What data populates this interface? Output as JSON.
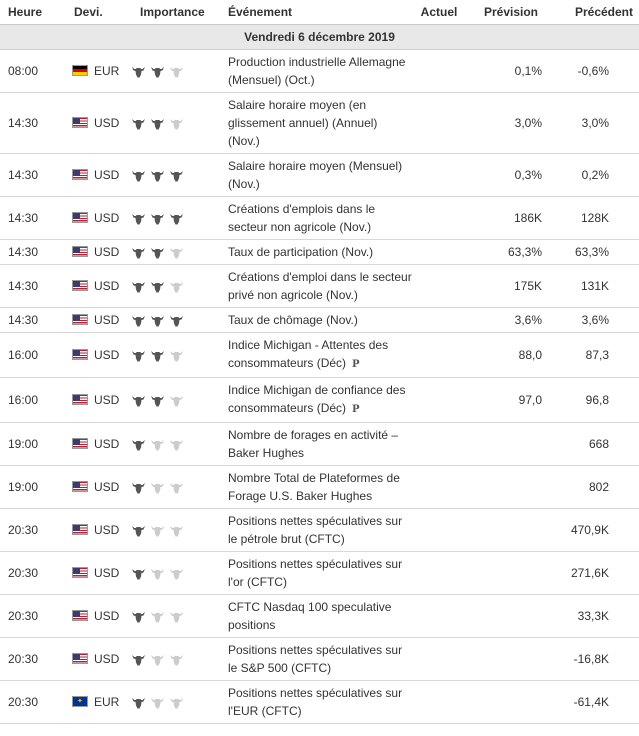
{
  "headers": {
    "time": "Heure",
    "currency": "Devi.",
    "importance": "Importance",
    "event": "Événement",
    "actual": "Actuel",
    "forecast": "Prévision",
    "previous": "Précédent"
  },
  "day_label": "Vendredi 6 décembre 2019",
  "colors": {
    "bull_active": "#555555",
    "bull_inactive": "#cccccc",
    "day_bg": "#e8e8e8"
  },
  "events": [
    {
      "time": "08:00",
      "flag": "de",
      "currency": "EUR",
      "importance": 2,
      "event": "Production industrielle Allemagne (Mensuel) (Oct.)",
      "prelim": false,
      "actual": "",
      "forecast": "0,1%",
      "previous": "-0,6%"
    },
    {
      "time": "14:30",
      "flag": "us",
      "currency": "USD",
      "importance": 2,
      "event": "Salaire horaire moyen (en glissement annuel) (Annuel) (Nov.)",
      "prelim": false,
      "actual": "",
      "forecast": "3,0%",
      "previous": "3,0%"
    },
    {
      "time": "14:30",
      "flag": "us",
      "currency": "USD",
      "importance": 3,
      "event": "Salaire horaire moyen (Mensuel) (Nov.)",
      "prelim": false,
      "actual": "",
      "forecast": "0,3%",
      "previous": "0,2%"
    },
    {
      "time": "14:30",
      "flag": "us",
      "currency": "USD",
      "importance": 3,
      "event": "Créations d'emplois dans le secteur non agricole (Nov.)",
      "prelim": false,
      "actual": "",
      "forecast": "186K",
      "previous": "128K"
    },
    {
      "time": "14:30",
      "flag": "us",
      "currency": "USD",
      "importance": 2,
      "event": "Taux de participation (Nov.)",
      "prelim": false,
      "actual": "",
      "forecast": "63,3%",
      "previous": "63,3%"
    },
    {
      "time": "14:30",
      "flag": "us",
      "currency": "USD",
      "importance": 2,
      "event": "Créations d'emploi dans le secteur privé non agricole (Nov.)",
      "prelim": false,
      "actual": "",
      "forecast": "175K",
      "previous": "131K"
    },
    {
      "time": "14:30",
      "flag": "us",
      "currency": "USD",
      "importance": 3,
      "event": "Taux de chômage (Nov.)",
      "prelim": false,
      "actual": "",
      "forecast": "3,6%",
      "previous": "3,6%"
    },
    {
      "time": "16:00",
      "flag": "us",
      "currency": "USD",
      "importance": 2,
      "event": "Indice Michigan - Attentes des consommateurs (Déc)",
      "prelim": true,
      "prelim_label": "P",
      "actual": "",
      "forecast": "88,0",
      "previous": "87,3"
    },
    {
      "time": "16:00",
      "flag": "us",
      "currency": "USD",
      "importance": 2,
      "event": "Indice Michigan de confiance des consommateurs (Déc)",
      "prelim": true,
      "prelim_label": "P",
      "actual": "",
      "forecast": "97,0",
      "previous": "96,8"
    },
    {
      "time": "19:00",
      "flag": "us",
      "currency": "USD",
      "importance": 1,
      "event": "Nombre de forages en activité – Baker Hughes",
      "prelim": false,
      "actual": "",
      "forecast": "",
      "previous": "668"
    },
    {
      "time": "19:00",
      "flag": "us",
      "currency": "USD",
      "importance": 1,
      "event": "Nombre Total de Plateformes de Forage U.S. Baker Hughes",
      "prelim": false,
      "actual": "",
      "forecast": "",
      "previous": "802"
    },
    {
      "time": "20:30",
      "flag": "us",
      "currency": "USD",
      "importance": 1,
      "event": "Positions nettes spéculatives sur le pétrole brut (CFTC)",
      "prelim": false,
      "actual": "",
      "forecast": "",
      "previous": "470,9K"
    },
    {
      "time": "20:30",
      "flag": "us",
      "currency": "USD",
      "importance": 1,
      "event": "Positions nettes spéculatives sur l'or (CFTC)",
      "prelim": false,
      "actual": "",
      "forecast": "",
      "previous": "271,6K"
    },
    {
      "time": "20:30",
      "flag": "us",
      "currency": "USD",
      "importance": 1,
      "event": "CFTC Nasdaq 100 speculative positions",
      "prelim": false,
      "actual": "",
      "forecast": "",
      "previous": "33,3K"
    },
    {
      "time": "20:30",
      "flag": "us",
      "currency": "USD",
      "importance": 1,
      "event": "Positions nettes spéculatives sur le S&P 500 (CFTC)",
      "prelim": false,
      "actual": "",
      "forecast": "",
      "previous": "-16,8K"
    },
    {
      "time": "20:30",
      "flag": "eu",
      "currency": "EUR",
      "importance": 1,
      "event": "Positions nettes spéculatives sur l'EUR (CFTC)",
      "prelim": false,
      "actual": "",
      "forecast": "",
      "previous": "-61,4K"
    }
  ]
}
